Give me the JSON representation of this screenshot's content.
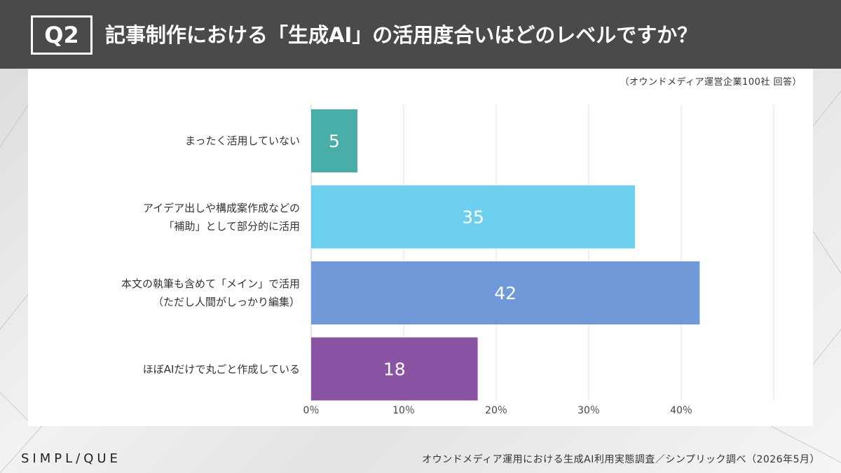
{
  "header": {
    "badge": "Q2",
    "title": "記事制作における「生成AI」の活用度合いはどのレベルですか？"
  },
  "source_note": "（オウンドメディア運営企業100社 回答）",
  "footer": {
    "logo": "SIMPL/QUE",
    "credit": "オウンドメディア運用における生成AI利用実態調査／シンプリック調べ（2026年5月）"
  },
  "chart_data": {
    "type": "bar",
    "orientation": "horizontal",
    "categories": [
      [
        "まったく活用していない"
      ],
      [
        "アイデア出しや構成案作成などの",
        "「補助」として部分的に活用"
      ],
      [
        "本文の執筆も含めて「メイン」で活用",
        "（ただし人間がしっかり編集）"
      ],
      [
        "ほぼAIだけで丸ごと作成している"
      ]
    ],
    "values": [
      5,
      35,
      42,
      18
    ],
    "data_labels": [
      "5",
      "35",
      "42",
      "18"
    ],
    "colors": [
      "#4aaea8",
      "#6dcfee",
      "#7099d9",
      "#8a53a3"
    ],
    "x_ticks": [
      0,
      10,
      20,
      30,
      40
    ],
    "x_tick_labels": [
      "0％",
      "10％",
      "20％",
      "30％",
      "40％"
    ],
    "xlim": [
      0,
      50
    ],
    "grid": true
  }
}
